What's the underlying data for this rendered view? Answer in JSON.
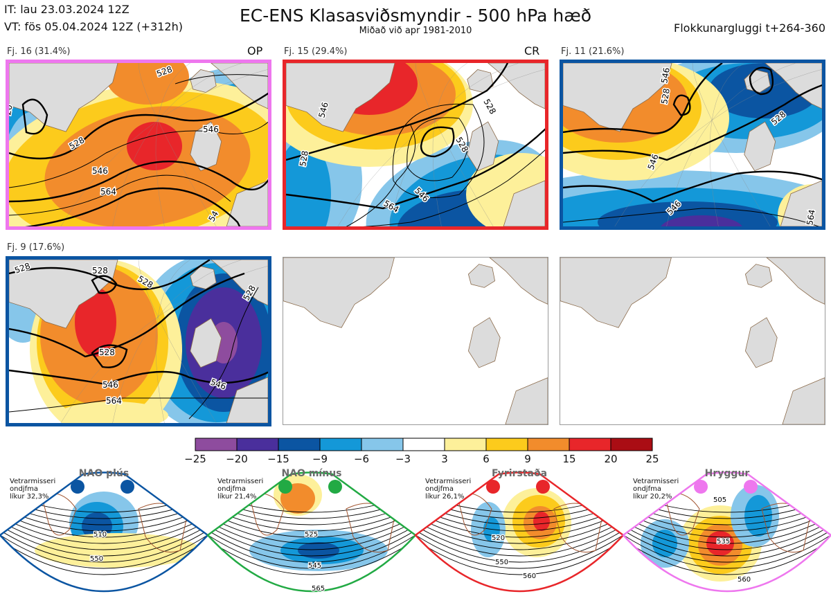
{
  "header": {
    "it_line": "IT: lau 23.03.2024 12Z",
    "vt_line": "VT: fös 05.04.2024 12Z  (+312h)",
    "title": "EC-ENS Klasasviðsmyndir - 500 hPa hæð",
    "subtitle": "Miðað við apr 1981-2010",
    "window": "Flokkunargluggi t+264-360"
  },
  "panels": [
    {
      "label": "Fj. 16 (31.4%)",
      "tag": "OP",
      "border": "#ee77ee",
      "contours": [
        "546",
        "528",
        "546",
        "564",
        "54",
        "20",
        "528"
      ]
    },
    {
      "label": "Fj. 15 (29.4%)",
      "tag": "CR",
      "border": "#e8262a",
      "contours": [
        "546",
        "528",
        "528",
        "546",
        "564",
        "528"
      ]
    },
    {
      "label": "Fj. 11 (21.6%)",
      "tag": "",
      "border": "#0b55a2",
      "contours": [
        "546",
        "528",
        "528",
        "546",
        "546",
        "564"
      ]
    },
    {
      "label": "Fj. 9 (17.6%)",
      "tag": "",
      "border": "#0b55a2",
      "contours": [
        "528",
        "528",
        "528",
        "528",
        "546",
        "564",
        "546"
      ]
    }
  ],
  "colorbar": {
    "colors": [
      "#8e4c9e",
      "#4a2f9c",
      "#0b55a2",
      "#1498d8",
      "#86c6ea",
      "#ffffff",
      "#fdf09a",
      "#fccb1c",
      "#f28c2c",
      "#e8262a",
      "#aa0d14"
    ],
    "ticks": [
      "−25",
      "−20",
      "−15",
      "−9",
      "−6",
      "−3",
      "3",
      "6",
      "9",
      "15",
      "20",
      "25"
    ]
  },
  "regimes": [
    {
      "title": "NAO plús",
      "note": [
        "Vetrarmisseri",
        "ondjfma",
        "líkur 32,3%"
      ],
      "color": "#0b55a2",
      "labels": [
        "510",
        "550"
      ]
    },
    {
      "title": "NAO mínus",
      "note": [
        "Vetrarmisseri",
        "ondjfma",
        "líkur 21,4%"
      ],
      "color": "#22aa44",
      "labels": [
        "525",
        "545",
        "565"
      ]
    },
    {
      "title": "Fyrirstaða",
      "note": [
        "Vetrarmisseri",
        "ondjfma",
        "líkur 26,1%"
      ],
      "color": "#e8262a",
      "labels": [
        "520",
        "550",
        "560"
      ]
    },
    {
      "title": "Hryggur",
      "note": [
        "Vetrarmisseri",
        "ondjfma",
        "líkur 20,2%"
      ],
      "color": "#ee77ee",
      "labels": [
        "505",
        "535",
        "560"
      ]
    }
  ]
}
